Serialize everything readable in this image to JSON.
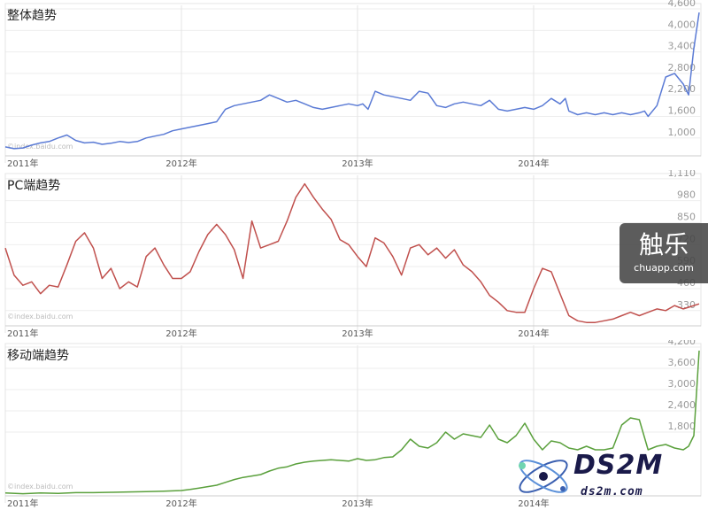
{
  "chart_data": [
    {
      "type": "line",
      "title": "整体趋势",
      "attribution": "©index.baidu.com",
      "color": "#5b7bd5",
      "y_ticks": [
        "1,000",
        "1,600",
        "2,200",
        "2,800",
        "3,400",
        "4,000",
        "4,600"
      ],
      "ylim": [
        500,
        4700
      ],
      "x_ticks": [
        "2011年",
        "2012年",
        "2013年",
        "2014年"
      ],
      "x_tick_positions": [
        0.0,
        1.0,
        2.0,
        3.0
      ],
      "xlim": [
        0.0,
        3.95
      ],
      "series": [
        {
          "name": "整体趋势",
          "x": [
            0.0,
            0.05,
            0.1,
            0.15,
            0.2,
            0.25,
            0.3,
            0.35,
            0.4,
            0.45,
            0.5,
            0.55,
            0.6,
            0.65,
            0.7,
            0.75,
            0.8,
            0.85,
            0.9,
            0.95,
            1.0,
            1.05,
            1.1,
            1.15,
            1.2,
            1.25,
            1.3,
            1.35,
            1.4,
            1.45,
            1.5,
            1.55,
            1.6,
            1.65,
            1.7,
            1.75,
            1.8,
            1.85,
            1.9,
            1.95,
            2.0,
            2.03,
            2.06,
            2.1,
            2.15,
            2.2,
            2.25,
            2.3,
            2.35,
            2.4,
            2.45,
            2.5,
            2.55,
            2.6,
            2.65,
            2.7,
            2.75,
            2.8,
            2.85,
            2.9,
            2.95,
            3.0,
            3.05,
            3.1,
            3.15,
            3.18,
            3.2,
            3.25,
            3.3,
            3.35,
            3.4,
            3.45,
            3.5,
            3.55,
            3.6,
            3.63,
            3.65,
            3.7,
            3.75,
            3.8,
            3.85,
            3.88,
            3.91,
            3.94
          ],
          "values": [
            750,
            700,
            720,
            800,
            860,
            900,
            1000,
            1080,
            930,
            860,
            880,
            820,
            850,
            900,
            870,
            900,
            1000,
            1050,
            1100,
            1200,
            1250,
            1300,
            1350,
            1400,
            1450,
            1800,
            1900,
            1950,
            2000,
            2050,
            2200,
            2100,
            2000,
            2050,
            1950,
            1850,
            1800,
            1850,
            1900,
            1950,
            1900,
            1950,
            1800,
            2300,
            2200,
            2150,
            2100,
            2050,
            2300,
            2250,
            1900,
            1850,
            1950,
            2000,
            1950,
            1900,
            2050,
            1800,
            1750,
            1800,
            1850,
            1800,
            1900,
            2100,
            1950,
            2100,
            1750,
            1650,
            1700,
            1650,
            1700,
            1650,
            1700,
            1650,
            1700,
            1750,
            1600,
            1900,
            2700,
            2800,
            2500,
            2200,
            3500,
            4500
          ]
        }
      ]
    },
    {
      "type": "line",
      "title": "PC端趋势",
      "attribution": "©index.baidu.com",
      "color": "#c0504d",
      "y_ticks": [
        "330",
        "460",
        "590",
        "720",
        "850",
        "980",
        "1,110"
      ],
      "ylim": [
        240,
        1130
      ],
      "x_ticks": [
        "2011年",
        "2012年",
        "2013年",
        "2014年"
      ],
      "x_tick_positions": [
        0.0,
        1.0,
        2.0,
        3.0
      ],
      "xlim": [
        0.0,
        3.95
      ],
      "series": [
        {
          "name": "PC端趋势",
          "x": [
            0.0,
            0.05,
            0.1,
            0.15,
            0.2,
            0.25,
            0.3,
            0.35,
            0.4,
            0.45,
            0.5,
            0.55,
            0.6,
            0.65,
            0.7,
            0.75,
            0.8,
            0.85,
            0.9,
            0.95,
            1.0,
            1.05,
            1.1,
            1.15,
            1.2,
            1.25,
            1.3,
            1.35,
            1.4,
            1.45,
            1.5,
            1.55,
            1.6,
            1.65,
            1.7,
            1.75,
            1.8,
            1.85,
            1.9,
            1.95,
            2.0,
            2.05,
            2.1,
            2.15,
            2.2,
            2.25,
            2.3,
            2.35,
            2.4,
            2.45,
            2.5,
            2.55,
            2.6,
            2.65,
            2.7,
            2.75,
            2.8,
            2.85,
            2.9,
            2.95,
            3.0,
            3.05,
            3.1,
            3.15,
            3.2,
            3.25,
            3.3,
            3.35,
            3.4,
            3.45,
            3.5,
            3.55,
            3.6,
            3.65,
            3.7,
            3.75,
            3.8,
            3.85,
            3.88,
            3.91,
            3.94
          ],
          "values": [
            700,
            540,
            480,
            500,
            430,
            480,
            470,
            600,
            740,
            790,
            700,
            520,
            580,
            460,
            500,
            470,
            650,
            700,
            600,
            520,
            520,
            560,
            680,
            780,
            840,
            780,
            690,
            520,
            860,
            700,
            720,
            740,
            860,
            1000,
            1080,
            1000,
            930,
            870,
            750,
            720,
            650,
            590,
            760,
            730,
            650,
            540,
            700,
            720,
            660,
            700,
            640,
            690,
            600,
            560,
            500,
            420,
            380,
            330,
            320,
            320,
            460,
            580,
            560,
            430,
            300,
            270,
            260,
            260,
            270,
            280,
            300,
            320,
            300,
            320,
            340,
            330,
            360,
            340,
            350,
            360,
            370
          ]
        }
      ]
    },
    {
      "type": "line",
      "title": "移动端趋势",
      "attribution": "©index.baidu.com",
      "color": "#5aa03c",
      "y_ticks": [
        "1,800",
        "2,400",
        "3,000",
        "3,600",
        "4,200"
      ],
      "ylim": [
        0,
        4250
      ],
      "x_ticks": [
        "2011年",
        "2012年",
        "2013年",
        "2014年"
      ],
      "x_tick_positions": [
        0.0,
        1.0,
        2.0,
        3.0
      ],
      "xlim": [
        0.0,
        3.95
      ],
      "series": [
        {
          "name": "移动端趋势",
          "x": [
            0.0,
            0.1,
            0.2,
            0.3,
            0.4,
            0.5,
            0.6,
            0.7,
            0.8,
            0.9,
            1.0,
            1.05,
            1.1,
            1.15,
            1.2,
            1.25,
            1.3,
            1.35,
            1.4,
            1.45,
            1.5,
            1.55,
            1.6,
            1.65,
            1.7,
            1.75,
            1.8,
            1.85,
            1.9,
            1.95,
            2.0,
            2.05,
            2.1,
            2.15,
            2.2,
            2.25,
            2.3,
            2.35,
            2.4,
            2.45,
            2.5,
            2.55,
            2.6,
            2.65,
            2.7,
            2.75,
            2.8,
            2.85,
            2.9,
            2.95,
            3.0,
            3.05,
            3.1,
            3.15,
            3.2,
            3.25,
            3.3,
            3.35,
            3.4,
            3.45,
            3.5,
            3.55,
            3.6,
            3.65,
            3.7,
            3.75,
            3.8,
            3.85,
            3.88,
            3.91,
            3.94
          ],
          "values": [
            80,
            60,
            80,
            70,
            90,
            90,
            100,
            110,
            120,
            130,
            150,
            180,
            220,
            260,
            300,
            380,
            460,
            520,
            560,
            600,
            700,
            780,
            820,
            900,
            950,
            980,
            1000,
            1020,
            1000,
            980,
            1050,
            1000,
            1020,
            1080,
            1100,
            1300,
            1600,
            1400,
            1350,
            1500,
            1800,
            1600,
            1750,
            1700,
            1650,
            2000,
            1600,
            1500,
            1700,
            2050,
            1600,
            1300,
            1550,
            1500,
            1350,
            1300,
            1400,
            1300,
            1300,
            1350,
            2000,
            2200,
            2150,
            1300,
            1400,
            1450,
            1350,
            1300,
            1400,
            1700,
            4100
          ]
        }
      ]
    }
  ],
  "watermarks": {
    "chuapp_main": "触乐",
    "chuapp_sub": "chuapp.com",
    "ds2m_main": "DS2M",
    "ds2m_sub": "ds2m.com"
  }
}
